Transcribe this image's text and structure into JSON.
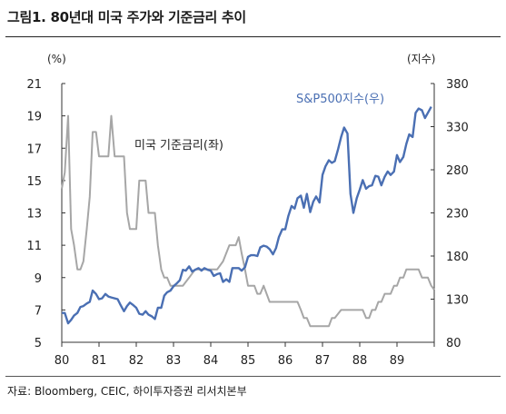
{
  "title": "그림1.   80년대 미국 주가와 기준금리 추이",
  "source": "자료: Bloomberg, CEIC, 하이투자증권 리서치본부",
  "chart_data": {
    "type": "line",
    "x_ticks": [
      "80",
      "81",
      "82",
      "83",
      "84",
      "85",
      "86",
      "87",
      "88",
      "89"
    ],
    "xlim": [
      1980,
      1990
    ],
    "y_left": {
      "unit": "(%)",
      "lim": [
        5,
        21
      ],
      "ticks": [
        5,
        7,
        9,
        11,
        13,
        15,
        17,
        19,
        21
      ]
    },
    "y_right": {
      "unit": "(지수)",
      "lim": [
        80,
        380
      ],
      "ticks": [
        80,
        130,
        180,
        230,
        280,
        330,
        380
      ]
    },
    "grid": false,
    "series": [
      {
        "name": "미국 기준금리(좌)",
        "axis": "left",
        "color": "#a6a6a6",
        "points": [
          [
            1980.0,
            14.5
          ],
          [
            1980.08,
            15.5
          ],
          [
            1980.17,
            19.0
          ],
          [
            1980.25,
            12.0
          ],
          [
            1980.33,
            11.0
          ],
          [
            1980.42,
            9.5
          ],
          [
            1980.5,
            9.5
          ],
          [
            1980.58,
            10.0
          ],
          [
            1980.67,
            12.0
          ],
          [
            1980.75,
            14.0
          ],
          [
            1980.83,
            18.0
          ],
          [
            1980.92,
            18.0
          ],
          [
            1981.0,
            16.5
          ],
          [
            1981.08,
            16.5
          ],
          [
            1981.17,
            16.5
          ],
          [
            1981.25,
            16.5
          ],
          [
            1981.33,
            19.0
          ],
          [
            1981.42,
            16.5
          ],
          [
            1981.5,
            16.5
          ],
          [
            1981.58,
            16.5
          ],
          [
            1981.67,
            16.5
          ],
          [
            1981.75,
            13.0
          ],
          [
            1981.83,
            12.0
          ],
          [
            1981.92,
            12.0
          ],
          [
            1982.0,
            12.0
          ],
          [
            1982.08,
            15.0
          ],
          [
            1982.17,
            15.0
          ],
          [
            1982.25,
            15.0
          ],
          [
            1982.33,
            13.0
          ],
          [
            1982.42,
            13.0
          ],
          [
            1982.5,
            13.0
          ],
          [
            1982.58,
            11.0
          ],
          [
            1982.67,
            9.5
          ],
          [
            1982.75,
            9.0
          ],
          [
            1982.83,
            9.0
          ],
          [
            1982.92,
            8.5
          ],
          [
            1983.0,
            8.5
          ],
          [
            1983.08,
            8.5
          ],
          [
            1983.25,
            8.5
          ],
          [
            1983.42,
            9.0
          ],
          [
            1983.58,
            9.5
          ],
          [
            1983.75,
            9.5
          ],
          [
            1983.92,
            9.5
          ],
          [
            1984.0,
            9.5
          ],
          [
            1984.17,
            9.5
          ],
          [
            1984.33,
            10.0
          ],
          [
            1984.5,
            11.0
          ],
          [
            1984.58,
            11.0
          ],
          [
            1984.67,
            11.0
          ],
          [
            1984.75,
            11.5
          ],
          [
            1984.83,
            10.5
          ],
          [
            1984.92,
            9.5
          ],
          [
            1985.0,
            8.5
          ],
          [
            1985.08,
            8.5
          ],
          [
            1985.17,
            8.5
          ],
          [
            1985.25,
            8.0
          ],
          [
            1985.33,
            8.0
          ],
          [
            1985.42,
            8.5
          ],
          [
            1985.5,
            8.0
          ],
          [
            1985.58,
            7.5
          ],
          [
            1985.75,
            7.5
          ],
          [
            1985.92,
            7.5
          ],
          [
            1986.0,
            7.5
          ],
          [
            1986.17,
            7.5
          ],
          [
            1986.33,
            7.5
          ],
          [
            1986.42,
            7.0
          ],
          [
            1986.5,
            6.5
          ],
          [
            1986.58,
            6.5
          ],
          [
            1986.67,
            6.0
          ],
          [
            1986.75,
            6.0
          ],
          [
            1986.92,
            6.0
          ],
          [
            1987.0,
            6.0
          ],
          [
            1987.17,
            6.0
          ],
          [
            1987.25,
            6.5
          ],
          [
            1987.33,
            6.5
          ],
          [
            1987.5,
            7.0
          ],
          [
            1987.67,
            7.0
          ],
          [
            1987.83,
            7.0
          ],
          [
            1988.0,
            7.0
          ],
          [
            1988.08,
            7.0
          ],
          [
            1988.17,
            6.5
          ],
          [
            1988.25,
            6.5
          ],
          [
            1988.33,
            7.0
          ],
          [
            1988.42,
            7.0
          ],
          [
            1988.5,
            7.5
          ],
          [
            1988.58,
            7.5
          ],
          [
            1988.67,
            8.0
          ],
          [
            1988.75,
            8.0
          ],
          [
            1988.83,
            8.0
          ],
          [
            1988.92,
            8.5
          ],
          [
            1989.0,
            8.5
          ],
          [
            1989.08,
            9.0
          ],
          [
            1989.17,
            9.0
          ],
          [
            1989.25,
            9.5
          ],
          [
            1989.33,
            9.5
          ],
          [
            1989.42,
            9.5
          ],
          [
            1989.5,
            9.5
          ],
          [
            1989.58,
            9.5
          ],
          [
            1989.67,
            9.0
          ],
          [
            1989.75,
            9.0
          ],
          [
            1989.83,
            9.0
          ],
          [
            1989.92,
            8.5
          ],
          [
            1990.0,
            8.25
          ]
        ]
      },
      {
        "name": "S&P500지수(우)",
        "axis": "right",
        "color": "#4a6fb3",
        "points": [
          [
            1980.0,
            114
          ],
          [
            1980.08,
            114
          ],
          [
            1980.17,
            102
          ],
          [
            1980.25,
            106
          ],
          [
            1980.33,
            111
          ],
          [
            1980.42,
            114
          ],
          [
            1980.5,
            121
          ],
          [
            1980.58,
            122
          ],
          [
            1980.67,
            125
          ],
          [
            1980.75,
            127
          ],
          [
            1980.83,
            140
          ],
          [
            1980.92,
            136
          ],
          [
            1981.0,
            130
          ],
          [
            1981.08,
            131
          ],
          [
            1981.17,
            136
          ],
          [
            1981.25,
            133
          ],
          [
            1981.33,
            132
          ],
          [
            1981.42,
            131
          ],
          [
            1981.5,
            130
          ],
          [
            1981.58,
            123
          ],
          [
            1981.67,
            116
          ],
          [
            1981.75,
            122
          ],
          [
            1981.83,
            126
          ],
          [
            1981.92,
            123
          ],
          [
            1982.0,
            120
          ],
          [
            1982.08,
            113
          ],
          [
            1982.17,
            112
          ],
          [
            1982.25,
            116
          ],
          [
            1982.33,
            112
          ],
          [
            1982.42,
            110
          ],
          [
            1982.5,
            107
          ],
          [
            1982.58,
            120
          ],
          [
            1982.67,
            120
          ],
          [
            1982.75,
            134
          ],
          [
            1982.83,
            138
          ],
          [
            1982.92,
            140
          ],
          [
            1983.0,
            145
          ],
          [
            1983.08,
            148
          ],
          [
            1983.17,
            152
          ],
          [
            1983.25,
            164
          ],
          [
            1983.33,
            163
          ],
          [
            1983.42,
            168
          ],
          [
            1983.5,
            162
          ],
          [
            1983.58,
            164
          ],
          [
            1983.67,
            166
          ],
          [
            1983.75,
            163
          ],
          [
            1983.83,
            166
          ],
          [
            1983.92,
            164
          ],
          [
            1984.0,
            163
          ],
          [
            1984.08,
            157
          ],
          [
            1984.17,
            159
          ],
          [
            1984.25,
            160
          ],
          [
            1984.33,
            150
          ],
          [
            1984.42,
            153
          ],
          [
            1984.5,
            150
          ],
          [
            1984.58,
            166
          ],
          [
            1984.67,
            166
          ],
          [
            1984.75,
            166
          ],
          [
            1984.83,
            163
          ],
          [
            1984.92,
            167
          ],
          [
            1985.0,
            179
          ],
          [
            1985.08,
            181
          ],
          [
            1985.17,
            181
          ],
          [
            1985.25,
            180
          ],
          [
            1985.33,
            190
          ],
          [
            1985.42,
            192
          ],
          [
            1985.5,
            191
          ],
          [
            1985.58,
            188
          ],
          [
            1985.67,
            182
          ],
          [
            1985.75,
            189
          ],
          [
            1985.83,
            202
          ],
          [
            1985.92,
            211
          ],
          [
            1986.0,
            211
          ],
          [
            1986.08,
            226
          ],
          [
            1986.17,
            238
          ],
          [
            1986.25,
            235
          ],
          [
            1986.33,
            247
          ],
          [
            1986.42,
            250
          ],
          [
            1986.5,
            236
          ],
          [
            1986.58,
            252
          ],
          [
            1986.67,
            231
          ],
          [
            1986.75,
            243
          ],
          [
            1986.83,
            249
          ],
          [
            1986.92,
            242
          ],
          [
            1987.0,
            274
          ],
          [
            1987.08,
            284
          ],
          [
            1987.17,
            291
          ],
          [
            1987.25,
            288
          ],
          [
            1987.33,
            290
          ],
          [
            1987.42,
            304
          ],
          [
            1987.5,
            318
          ],
          [
            1987.58,
            329
          ],
          [
            1987.67,
            322
          ],
          [
            1987.75,
            252
          ],
          [
            1987.83,
            230
          ],
          [
            1987.92,
            247
          ],
          [
            1988.0,
            257
          ],
          [
            1988.08,
            268
          ],
          [
            1988.17,
            258
          ],
          [
            1988.25,
            261
          ],
          [
            1988.33,
            262
          ],
          [
            1988.42,
            273
          ],
          [
            1988.5,
            272
          ],
          [
            1988.58,
            262
          ],
          [
            1988.67,
            272
          ],
          [
            1988.75,
            278
          ],
          [
            1988.83,
            274
          ],
          [
            1988.92,
            278
          ],
          [
            1989.0,
            297
          ],
          [
            1989.08,
            289
          ],
          [
            1989.17,
            295
          ],
          [
            1989.25,
            310
          ],
          [
            1989.33,
            321
          ],
          [
            1989.42,
            318
          ],
          [
            1989.5,
            346
          ],
          [
            1989.58,
            351
          ],
          [
            1989.67,
            349
          ],
          [
            1989.75,
            340
          ],
          [
            1989.83,
            346
          ],
          [
            1989.92,
            353
          ]
        ]
      }
    ],
    "annotations": [
      {
        "text": "미국 기준금리(좌)",
        "series": 0
      },
      {
        "text": "S&P500지수(우)",
        "series": 1
      }
    ]
  }
}
